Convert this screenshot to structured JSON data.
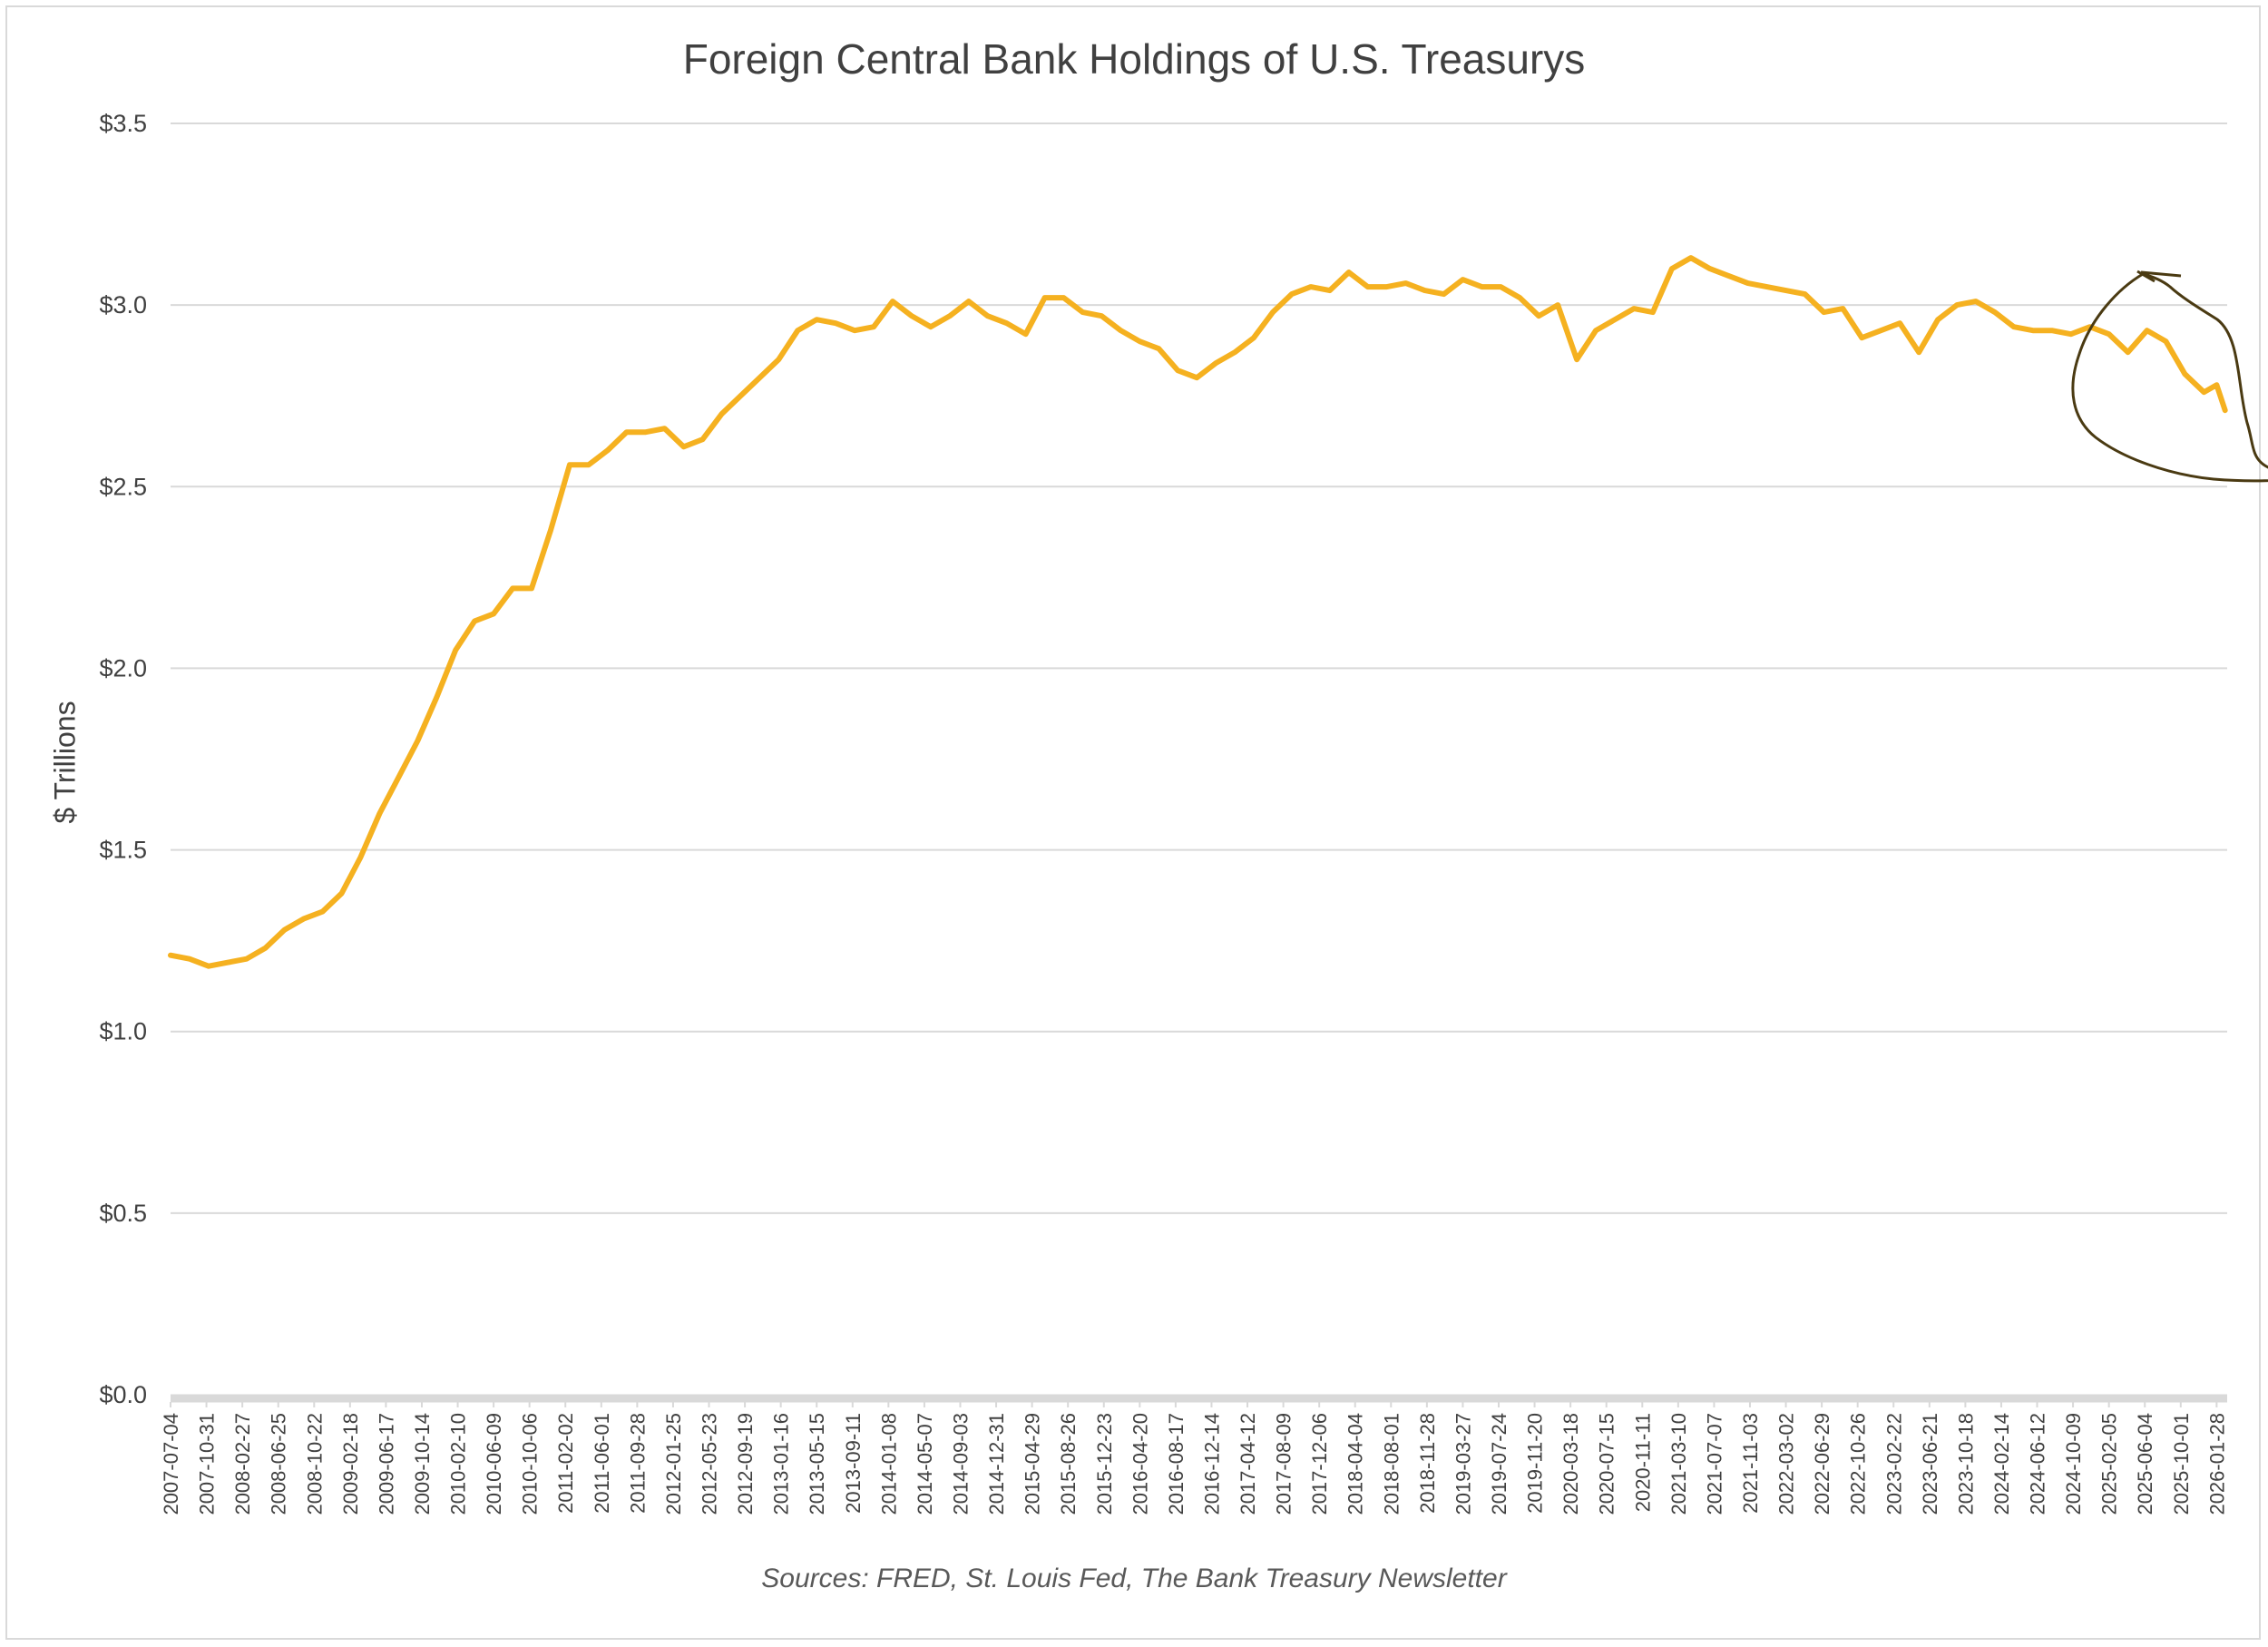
{
  "chart_data": {
    "type": "line",
    "title": "Foreign Central Bank Holdings of U.S. Treasurys",
    "ylabel": "$ Trillions",
    "xlabel": "",
    "source": "Sources: FRED, St. Louis Fed, The Bank Treasury Newsletter",
    "ylim": [
      0,
      3.5
    ],
    "y_ticks": [
      "$0.0",
      "$0.5",
      "$1.0",
      "$1.5",
      "$2.0",
      "$2.5",
      "$3.0",
      "$3.5"
    ],
    "y_tick_values": [
      0,
      0.5,
      1.0,
      1.5,
      2.0,
      2.5,
      3.0,
      3.5
    ],
    "x_ticks": [
      "2007-07-04",
      "2007-10-31",
      "2008-02-27",
      "2008-06-25",
      "2008-10-22",
      "2009-02-18",
      "2009-06-17",
      "2009-10-14",
      "2010-02-10",
      "2010-06-09",
      "2010-10-06",
      "2011-02-02",
      "2011-06-01",
      "2011-09-28",
      "2012-01-25",
      "2012-05-23",
      "2012-09-19",
      "2013-01-16",
      "2013-05-15",
      "2013-09-11",
      "2014-01-08",
      "2014-05-07",
      "2014-09-03",
      "2014-12-31",
      "2015-04-29",
      "2015-08-26",
      "2015-12-23",
      "2016-04-20",
      "2016-08-17",
      "2016-12-14",
      "2017-04-12",
      "2017-08-09",
      "2017-12-06",
      "2018-04-04",
      "2018-08-01",
      "2018-11-28",
      "2019-03-27",
      "2019-07-24",
      "2019-11-20",
      "2020-03-18",
      "2020-07-15",
      "2020-11-11",
      "2021-03-10",
      "2021-07-07",
      "2021-11-03",
      "2022-03-02",
      "2022-06-29",
      "2022-10-26",
      "2023-02-22",
      "2023-06-21",
      "2023-10-18",
      "2024-02-14",
      "2024-06-12",
      "2024-10-09",
      "2025-02-05",
      "2025-06-04",
      "2025-10-01",
      "2026-01-28"
    ],
    "grid": true,
    "legend": "none",
    "series": [
      {
        "color": "#f5b120",
        "x": [
          "2007-07-04",
          "2007-09-05",
          "2007-11-07",
          "2008-01-09",
          "2008-03-12",
          "2008-05-14",
          "2008-07-16",
          "2008-09-17",
          "2008-11-19",
          "2009-01-21",
          "2009-03-25",
          "2009-05-27",
          "2009-07-29",
          "2009-09-30",
          "2009-12-02",
          "2010-02-03",
          "2010-04-07",
          "2010-06-09",
          "2010-08-11",
          "2010-10-13",
          "2010-12-15",
          "2011-02-16",
          "2011-04-20",
          "2011-06-22",
          "2011-08-24",
          "2011-10-26",
          "2011-12-28",
          "2012-02-29",
          "2012-05-02",
          "2012-07-04",
          "2012-09-05",
          "2012-11-07",
          "2013-01-09",
          "2013-03-13",
          "2013-05-15",
          "2013-07-17",
          "2013-09-18",
          "2013-11-20",
          "2014-01-22",
          "2014-03-26",
          "2014-05-28",
          "2014-07-30",
          "2014-10-01",
          "2014-12-03",
          "2015-02-04",
          "2015-04-08",
          "2015-06-10",
          "2015-08-12",
          "2015-10-14",
          "2015-12-16",
          "2016-02-17",
          "2016-04-20",
          "2016-06-22",
          "2016-08-24",
          "2016-10-26",
          "2016-12-28",
          "2017-03-01",
          "2017-05-03",
          "2017-07-05",
          "2017-09-06",
          "2017-11-08",
          "2018-01-10",
          "2018-03-14",
          "2018-05-16",
          "2018-07-18",
          "2018-09-19",
          "2018-11-21",
          "2019-01-23",
          "2019-03-27",
          "2019-05-29",
          "2019-07-31",
          "2019-10-02",
          "2019-12-04",
          "2020-02-05",
          "2020-04-08",
          "2020-06-10",
          "2020-08-12",
          "2020-10-14",
          "2020-12-16",
          "2021-02-17",
          "2021-04-21",
          "2021-06-23",
          "2021-08-25",
          "2021-10-27",
          "2021-12-29",
          "2022-03-02",
          "2022-05-04",
          "2022-07-06",
          "2022-09-07",
          "2022-11-09",
          "2023-01-11",
          "2023-03-15",
          "2023-05-17",
          "2023-07-19",
          "2023-09-20",
          "2023-11-22",
          "2024-01-24",
          "2024-03-27",
          "2024-05-29",
          "2024-07-31",
          "2024-10-02",
          "2024-12-04",
          "2025-02-05",
          "2025-04-09",
          "2025-06-11",
          "2025-08-13",
          "2025-10-15",
          "2025-12-17",
          "2026-01-28",
          "2026-02-25"
        ],
        "y": [
          1.21,
          1.2,
          1.18,
          1.19,
          1.2,
          1.23,
          1.28,
          1.31,
          1.33,
          1.38,
          1.48,
          1.6,
          1.7,
          1.8,
          1.92,
          2.05,
          2.13,
          2.15,
          2.22,
          2.22,
          2.38,
          2.56,
          2.56,
          2.6,
          2.65,
          2.65,
          2.66,
          2.61,
          2.63,
          2.7,
          2.75,
          2.8,
          2.85,
          2.93,
          2.96,
          2.95,
          2.93,
          2.94,
          3.01,
          2.97,
          2.94,
          2.97,
          3.01,
          2.97,
          2.95,
          2.92,
          3.02,
          3.02,
          2.98,
          2.97,
          2.93,
          2.9,
          2.88,
          2.82,
          2.8,
          2.84,
          2.87,
          2.91,
          2.98,
          3.03,
          3.05,
          3.04,
          3.09,
          3.05,
          3.05,
          3.06,
          3.04,
          3.03,
          3.07,
          3.05,
          3.05,
          3.02,
          2.97,
          3.0,
          2.85,
          2.93,
          2.96,
          2.99,
          2.98,
          3.1,
          3.13,
          3.1,
          3.08,
          3.06,
          3.05,
          3.04,
          3.03,
          2.98,
          2.99,
          2.91,
          2.93,
          2.95,
          2.87,
          2.96,
          3.0,
          3.01,
          2.98,
          2.94,
          2.93,
          2.93,
          2.92,
          2.94,
          2.92,
          2.87,
          2.93,
          2.9,
          2.81,
          2.76,
          2.78,
          2.71
        ]
      }
    ],
    "annotation": "hand-drawn circle around 2025-2026 decline"
  }
}
